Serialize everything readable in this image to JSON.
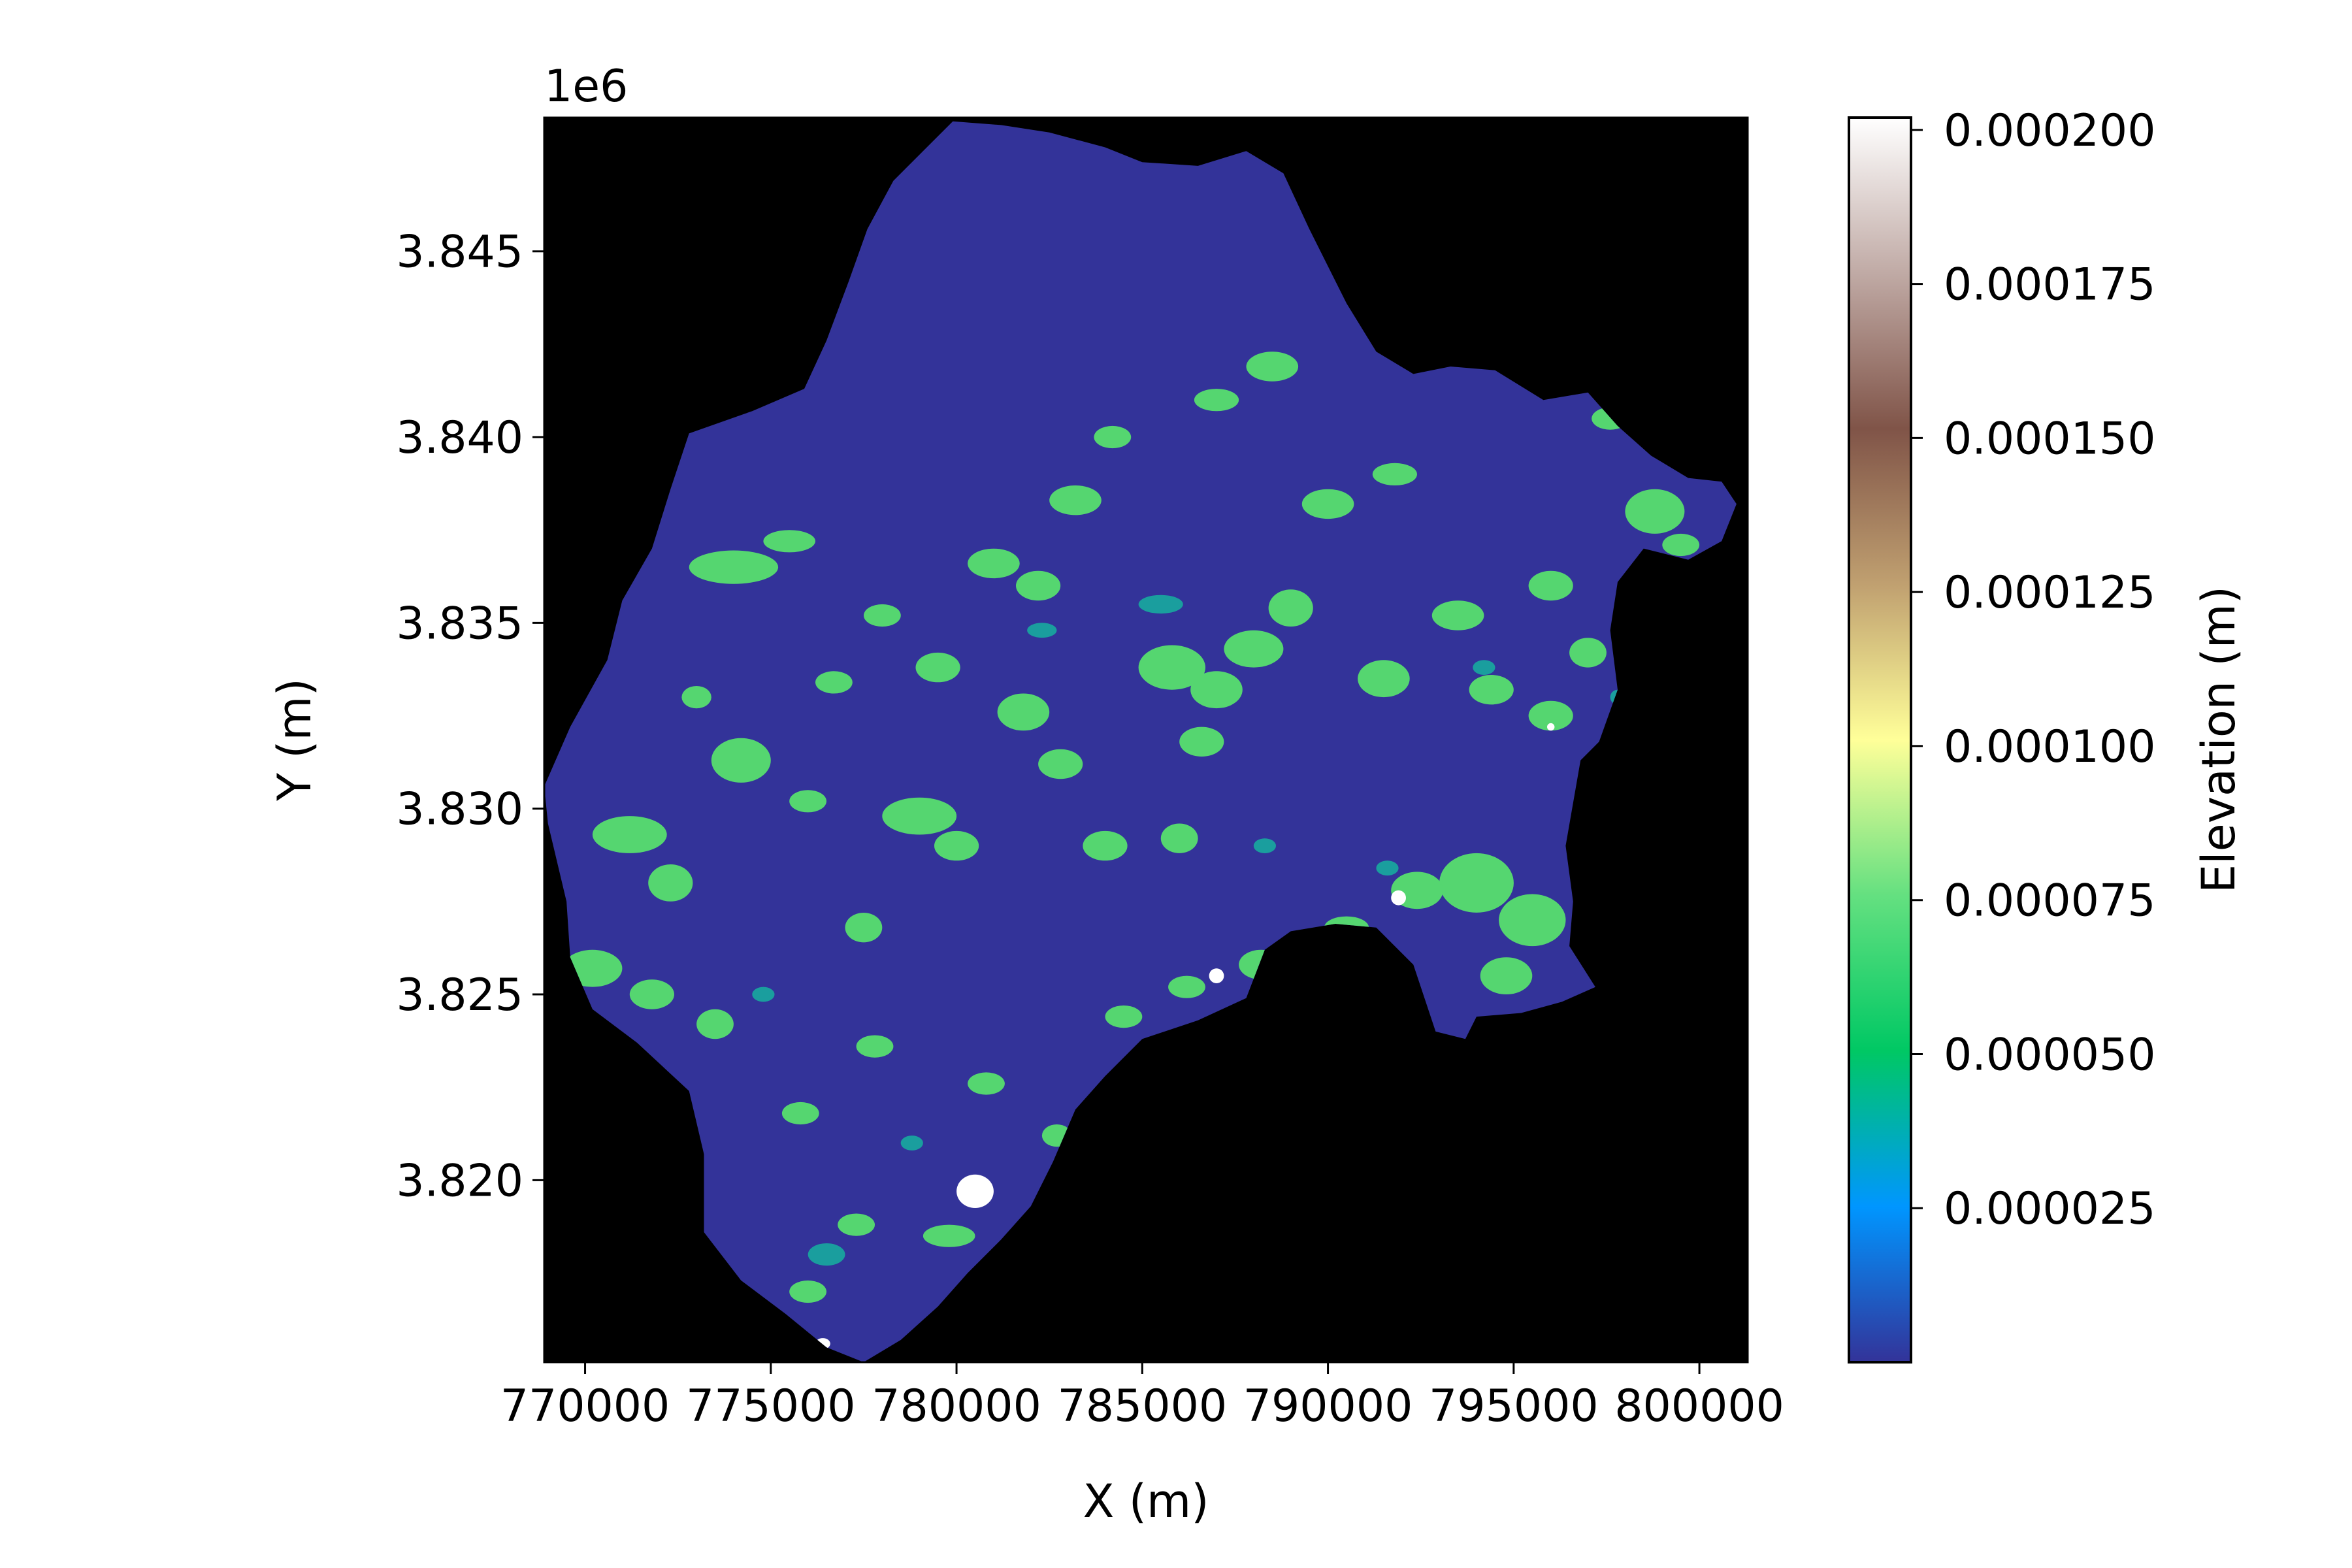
{
  "chart_data": {
    "type": "heatmap",
    "title": "",
    "xlabel": "X (m)",
    "ylabel": "Y (m)",
    "y_offset_text": "1e6",
    "xlim": [
      768900,
      801300
    ],
    "ylim": [
      3815100,
      3848600
    ],
    "x_ticks": [
      770000,
      775000,
      780000,
      785000,
      790000,
      795000,
      800000
    ],
    "x_tick_labels": [
      "770000",
      "775000",
      "780000",
      "785000",
      "790000",
      "795000",
      "800000"
    ],
    "y_ticks": [
      3820000,
      3825000,
      3830000,
      3835000,
      3840000,
      3845000
    ],
    "y_tick_labels": [
      "3.820",
      "3.825",
      "3.830",
      "3.835",
      "3.840",
      "3.845"
    ],
    "background": "#000000",
    "grid": false,
    "colorbar": {
      "label": "Elevation (m)",
      "colormap": "terrain",
      "vmin": 0.0,
      "vmax": 0.000202,
      "ticks": [
        2.5e-05,
        5e-05,
        7.5e-05,
        0.0001,
        0.000125,
        0.00015,
        0.000175,
        0.0002
      ],
      "tick_labels": [
        "0.000025",
        "0.000050",
        "0.000075",
        "0.000100",
        "0.000125",
        "0.000150",
        "0.000175",
        "0.000200"
      ],
      "stops": [
        "#333399",
        "#0096ff",
        "#00c864",
        "#64e080",
        "#ffff99",
        "#c0a070",
        "#805448",
        "#c0aaa5",
        "#ffffff"
      ]
    },
    "base_color": "#333399",
    "watershed_boundary": [
      [
        779900,
        3848500
      ],
      [
        781200,
        3848400
      ],
      [
        782500,
        3848200
      ],
      [
        784000,
        3847800
      ],
      [
        785000,
        3847400
      ],
      [
        786500,
        3847300
      ],
      [
        787800,
        3847700
      ],
      [
        788800,
        3847100
      ],
      [
        789500,
        3845600
      ],
      [
        790500,
        3843600
      ],
      [
        791300,
        3842300
      ],
      [
        792300,
        3841700
      ],
      [
        793300,
        3841900
      ],
      [
        794500,
        3841800
      ],
      [
        795800,
        3841000
      ],
      [
        797000,
        3841200
      ],
      [
        797800,
        3840300
      ],
      [
        798700,
        3839500
      ],
      [
        799700,
        3838900
      ],
      [
        800600,
        3838800
      ],
      [
        801000,
        3838200
      ],
      [
        800600,
        3837200
      ],
      [
        799700,
        3836700
      ],
      [
        798500,
        3837000
      ],
      [
        797800,
        3836100
      ],
      [
        797600,
        3834800
      ],
      [
        797800,
        3833200
      ],
      [
        797300,
        3831800
      ],
      [
        796800,
        3831300
      ],
      [
        796400,
        3829000
      ],
      [
        796600,
        3827500
      ],
      [
        796500,
        3826300
      ],
      [
        797200,
        3825200
      ],
      [
        796300,
        3824800
      ],
      [
        795200,
        3824500
      ],
      [
        794000,
        3824400
      ],
      [
        793700,
        3823800
      ],
      [
        792900,
        3824000
      ],
      [
        792300,
        3825800
      ],
      [
        791300,
        3826800
      ],
      [
        790200,
        3826900
      ],
      [
        789000,
        3826700
      ],
      [
        788300,
        3826200
      ],
      [
        787800,
        3824900
      ],
      [
        786500,
        3824300
      ],
      [
        785000,
        3823800
      ],
      [
        784000,
        3822800
      ],
      [
        783200,
        3821900
      ],
      [
        782600,
        3820500
      ],
      [
        782000,
        3819300
      ],
      [
        781200,
        3818400
      ],
      [
        780300,
        3817500
      ],
      [
        779500,
        3816600
      ],
      [
        778500,
        3815700
      ],
      [
        777500,
        3815100
      ],
      [
        776500,
        3815500
      ],
      [
        775400,
        3816400
      ],
      [
        774200,
        3817300
      ],
      [
        773200,
        3818600
      ],
      [
        773200,
        3820700
      ],
      [
        772800,
        3822400
      ],
      [
        771400,
        3823700
      ],
      [
        770200,
        3824600
      ],
      [
        769600,
        3826000
      ],
      [
        769500,
        3827500
      ],
      [
        769000,
        3829600
      ],
      [
        768900,
        3830600
      ],
      [
        769600,
        3832200
      ],
      [
        770600,
        3834000
      ],
      [
        771000,
        3835600
      ],
      [
        771800,
        3837000
      ],
      [
        772300,
        3838600
      ],
      [
        772800,
        3840100
      ],
      [
        774500,
        3840700
      ],
      [
        775900,
        3841300
      ],
      [
        776500,
        3842600
      ],
      [
        777100,
        3844200
      ],
      [
        777600,
        3845600
      ],
      [
        778300,
        3846900
      ],
      [
        779200,
        3847800
      ]
    ],
    "green_patches": [
      [
        774,
        3836.5,
        1.2,
        0.45
      ],
      [
        775.5,
        3837.2,
        0.7,
        0.3
      ],
      [
        774.2,
        3831.3,
        0.8,
        0.6
      ],
      [
        771.2,
        3829.3,
        1.0,
        0.5
      ],
      [
        772.3,
        3828.0,
        0.6,
        0.5
      ],
      [
        770.2,
        3825.7,
        0.8,
        0.5
      ],
      [
        771.8,
        3825.0,
        0.6,
        0.4
      ],
      [
        773.5,
        3824.2,
        0.5,
        0.4
      ],
      [
        776.0,
        3830.2,
        0.5,
        0.3
      ],
      [
        779.0,
        3829.8,
        1.0,
        0.5
      ],
      [
        780.0,
        3829.0,
        0.6,
        0.4
      ],
      [
        777.5,
        3826.8,
        0.5,
        0.4
      ],
      [
        781.0,
        3836.6,
        0.7,
        0.4
      ],
      [
        782.2,
        3836.0,
        0.6,
        0.4
      ],
      [
        783.2,
        3838.3,
        0.7,
        0.4
      ],
      [
        785.8,
        3833.8,
        0.9,
        0.6
      ],
      [
        787.0,
        3833.2,
        0.7,
        0.5
      ],
      [
        788.0,
        3834.3,
        0.8,
        0.5
      ],
      [
        786.6,
        3831.8,
        0.6,
        0.4
      ],
      [
        788.5,
        3841.9,
        0.7,
        0.4
      ],
      [
        787.0,
        3841.0,
        0.6,
        0.3
      ],
      [
        789.0,
        3835.4,
        0.6,
        0.5
      ],
      [
        791.5,
        3833.5,
        0.7,
        0.5
      ],
      [
        793.5,
        3835.2,
        0.7,
        0.4
      ],
      [
        794.4,
        3833.2,
        0.6,
        0.4
      ],
      [
        796.0,
        3832.5,
        0.6,
        0.4
      ],
      [
        794.0,
        3828.0,
        1.0,
        0.8
      ],
      [
        795.5,
        3827.0,
        0.9,
        0.7
      ],
      [
        794.8,
        3825.5,
        0.7,
        0.5
      ],
      [
        792.4,
        3827.8,
        0.7,
        0.5
      ],
      [
        796.0,
        3836.0,
        0.6,
        0.4
      ],
      [
        797.0,
        3834.2,
        0.5,
        0.4
      ],
      [
        798.8,
        3838.0,
        0.8,
        0.6
      ],
      [
        799.5,
        3837.1,
        0.5,
        0.3
      ],
      [
        790.5,
        3826.8,
        0.6,
        0.3
      ],
      [
        788.2,
        3825.8,
        0.6,
        0.4
      ],
      [
        786.2,
        3825.2,
        0.5,
        0.3
      ],
      [
        784.5,
        3824.4,
        0.5,
        0.3
      ],
      [
        782.7,
        3821.2,
        0.4,
        0.3
      ],
      [
        779.8,
        3818.5,
        0.7,
        0.3
      ],
      [
        777.3,
        3818.8,
        0.5,
        0.3
      ],
      [
        776.0,
        3817.0,
        0.5,
        0.3
      ],
      [
        781.8,
        3832.6,
        0.7,
        0.5
      ],
      [
        782.8,
        3831.2,
        0.6,
        0.4
      ],
      [
        784.0,
        3829.0,
        0.6,
        0.4
      ],
      [
        786.0,
        3829.2,
        0.5,
        0.4
      ],
      [
        779.5,
        3833.8,
        0.6,
        0.4
      ],
      [
        778.0,
        3835.2,
        0.5,
        0.3
      ],
      [
        776.7,
        3833.4,
        0.5,
        0.3
      ],
      [
        790.0,
        3838.2,
        0.7,
        0.4
      ],
      [
        791.8,
        3839.0,
        0.6,
        0.3
      ],
      [
        784.2,
        3840.0,
        0.5,
        0.3
      ],
      [
        797.6,
        3840.5,
        0.5,
        0.3
      ],
      [
        773.0,
        3833.0,
        0.4,
        0.3
      ],
      [
        775.8,
        3821.8,
        0.5,
        0.3
      ],
      [
        777.8,
        3823.6,
        0.5,
        0.3
      ],
      [
        780.8,
        3822.6,
        0.5,
        0.3
      ]
    ],
    "teal_patches": [
      [
        785.5,
        3835.5,
        0.6,
        0.25
      ],
      [
        782.3,
        3834.8,
        0.4,
        0.2
      ],
      [
        794.2,
        3833.8,
        0.3,
        0.2
      ],
      [
        776.5,
        3818.0,
        0.5,
        0.3
      ],
      [
        774.8,
        3825.0,
        0.3,
        0.2
      ],
      [
        791.6,
        3828.4,
        0.3,
        0.2
      ],
      [
        778.8,
        3821.0,
        0.3,
        0.2
      ],
      [
        788.3,
        3829.0,
        0.3,
        0.2
      ],
      [
        797.8,
        3833.0,
        0.2,
        0.2
      ]
    ],
    "white_patches": [
      [
        780.5,
        3819.7,
        0.5,
        0.45
      ],
      [
        787.0,
        3825.5,
        0.2,
        0.2
      ],
      [
        776.4,
        3815.6,
        0.2,
        0.15
      ],
      [
        791.9,
        3827.6,
        0.2,
        0.2
      ],
      [
        796.0,
        3832.2,
        0.1,
        0.1
      ]
    ]
  }
}
